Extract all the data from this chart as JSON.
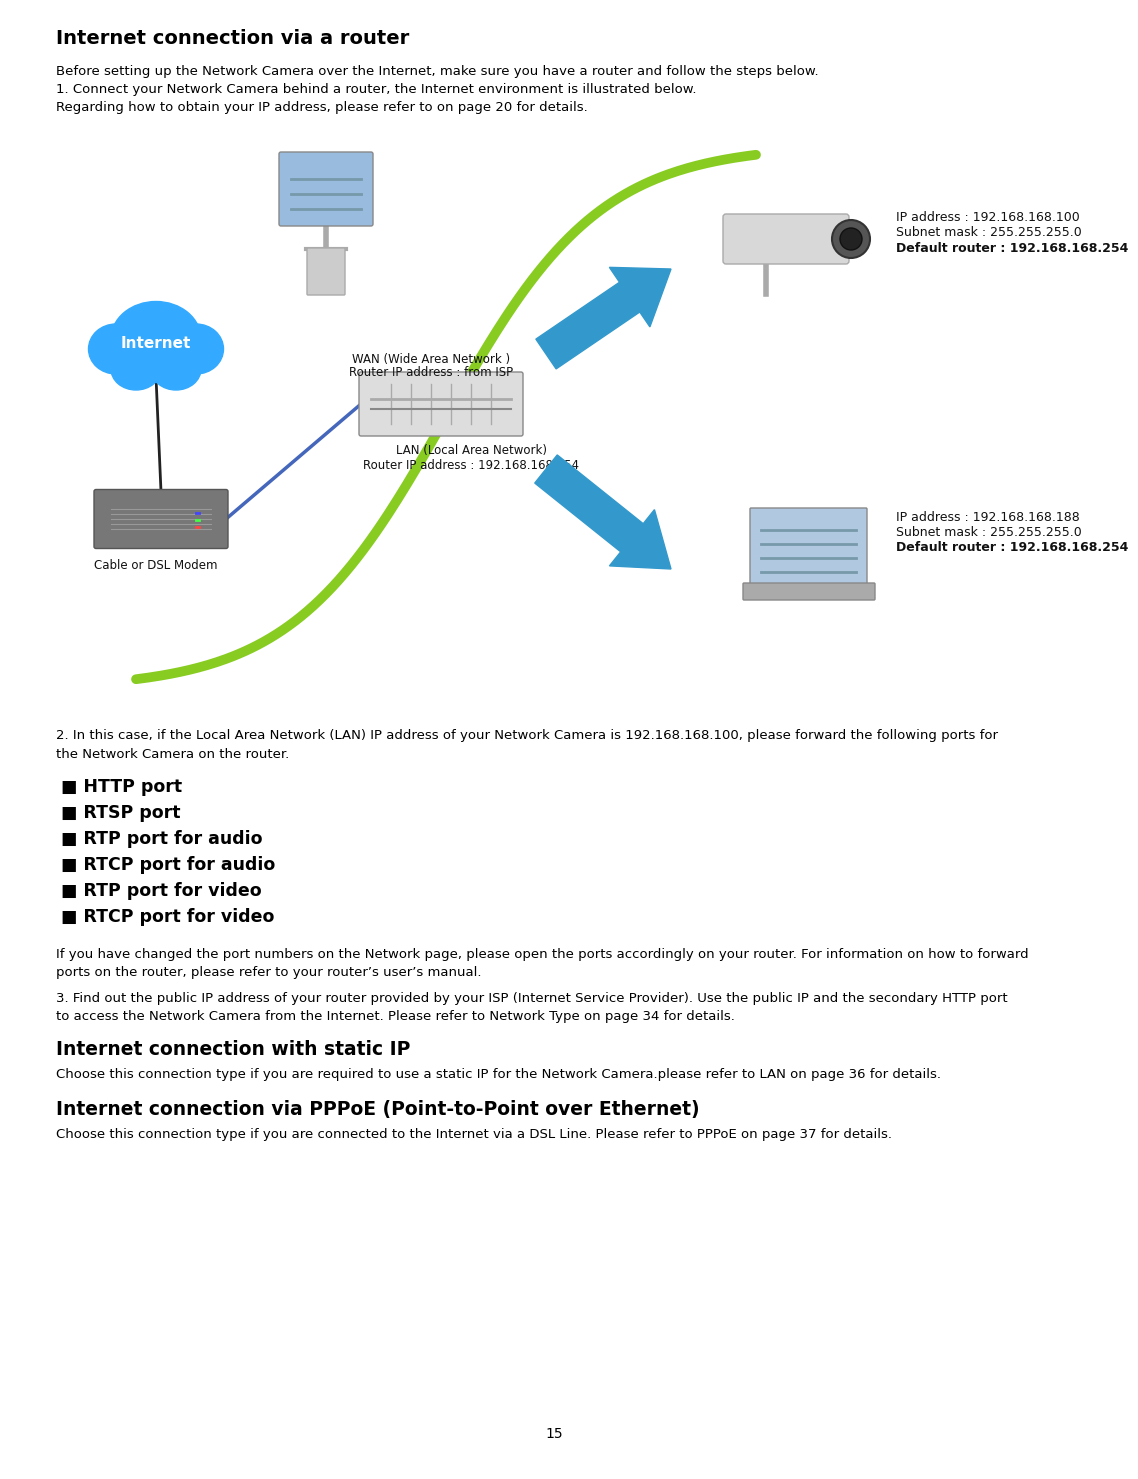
{
  "title": "Internet connection via a router",
  "bg_color": "#ffffff",
  "text_color": "#000000",
  "page_number": "15",
  "line1": "Before setting up the Network Camera over the Internet, make sure you have a router and follow the steps below.",
  "line2": "1. Connect your Network Camera behind a router, the Internet environment is illustrated below.",
  "line3": "Regarding how to obtain your IP address, please refer to on page 20 for details.",
  "para2_line1": "2. In this case, if the Local Area Network (LAN) IP address of your Network Camera is 192.168.168.100, please forward the following ports for",
  "para2_line2": "the Network Camera on the router.",
  "bullet_items": [
    "■ HTTP port",
    "■ RTSP port",
    "■ RTP port for audio",
    "■ RTCP port for audio",
    "■ RTP port for video",
    "■ RTCP port for video"
  ],
  "para3_line1": "If you have changed the port numbers on the Network page, please open the ports accordingly on your router. For information on how to forward",
  "para3_line2": "ports on the router, please refer to your router’s user’s manual.",
  "para4_line1": "3. Find out the public IP address of your router provided by your ISP (Internet Service Provider). Use the public IP and the secondary HTTP port",
  "para4_line2": "to access the Network Camera from the Internet. Please refer to Network Type on page 34 for details.",
  "heading2": "Internet connection with static IP",
  "para5": "Choose this connection type if you are required to use a static IP for the Network Camera.please refer to LAN on page 36 for details.",
  "heading3": "Internet connection via PPPoE (Point-to-Point over Ethernet)",
  "para6": "Choose this connection type if you are connected to the Internet via a DSL Line. Please refer to PPPoE on page 37 for details.",
  "cloud_color": "#33aaff",
  "cloud_text": "Internet",
  "green_line_color": "#88cc22",
  "blue_arrow_color": "#3399cc",
  "wan_label1": "WAN (Wide Area Network )",
  "wan_label2": "Router IP address : from ISP",
  "lan_label1": "LAN (Local Area Network)",
  "lan_label2": "Router IP address : 192.168.168.254",
  "modem_label": "Cable or DSL Modem",
  "cam_ip": "IP address : 192.168.168.100",
  "cam_subnet": "Subnet mask : 255.255.255.0",
  "cam_router": "Default router : 192.168.168.254",
  "lap_ip": "IP address : 192.168.168.188",
  "lap_subnet": "Subnet mask : 255.255.255.0",
  "lap_router": "Default router : 192.168.168.254"
}
